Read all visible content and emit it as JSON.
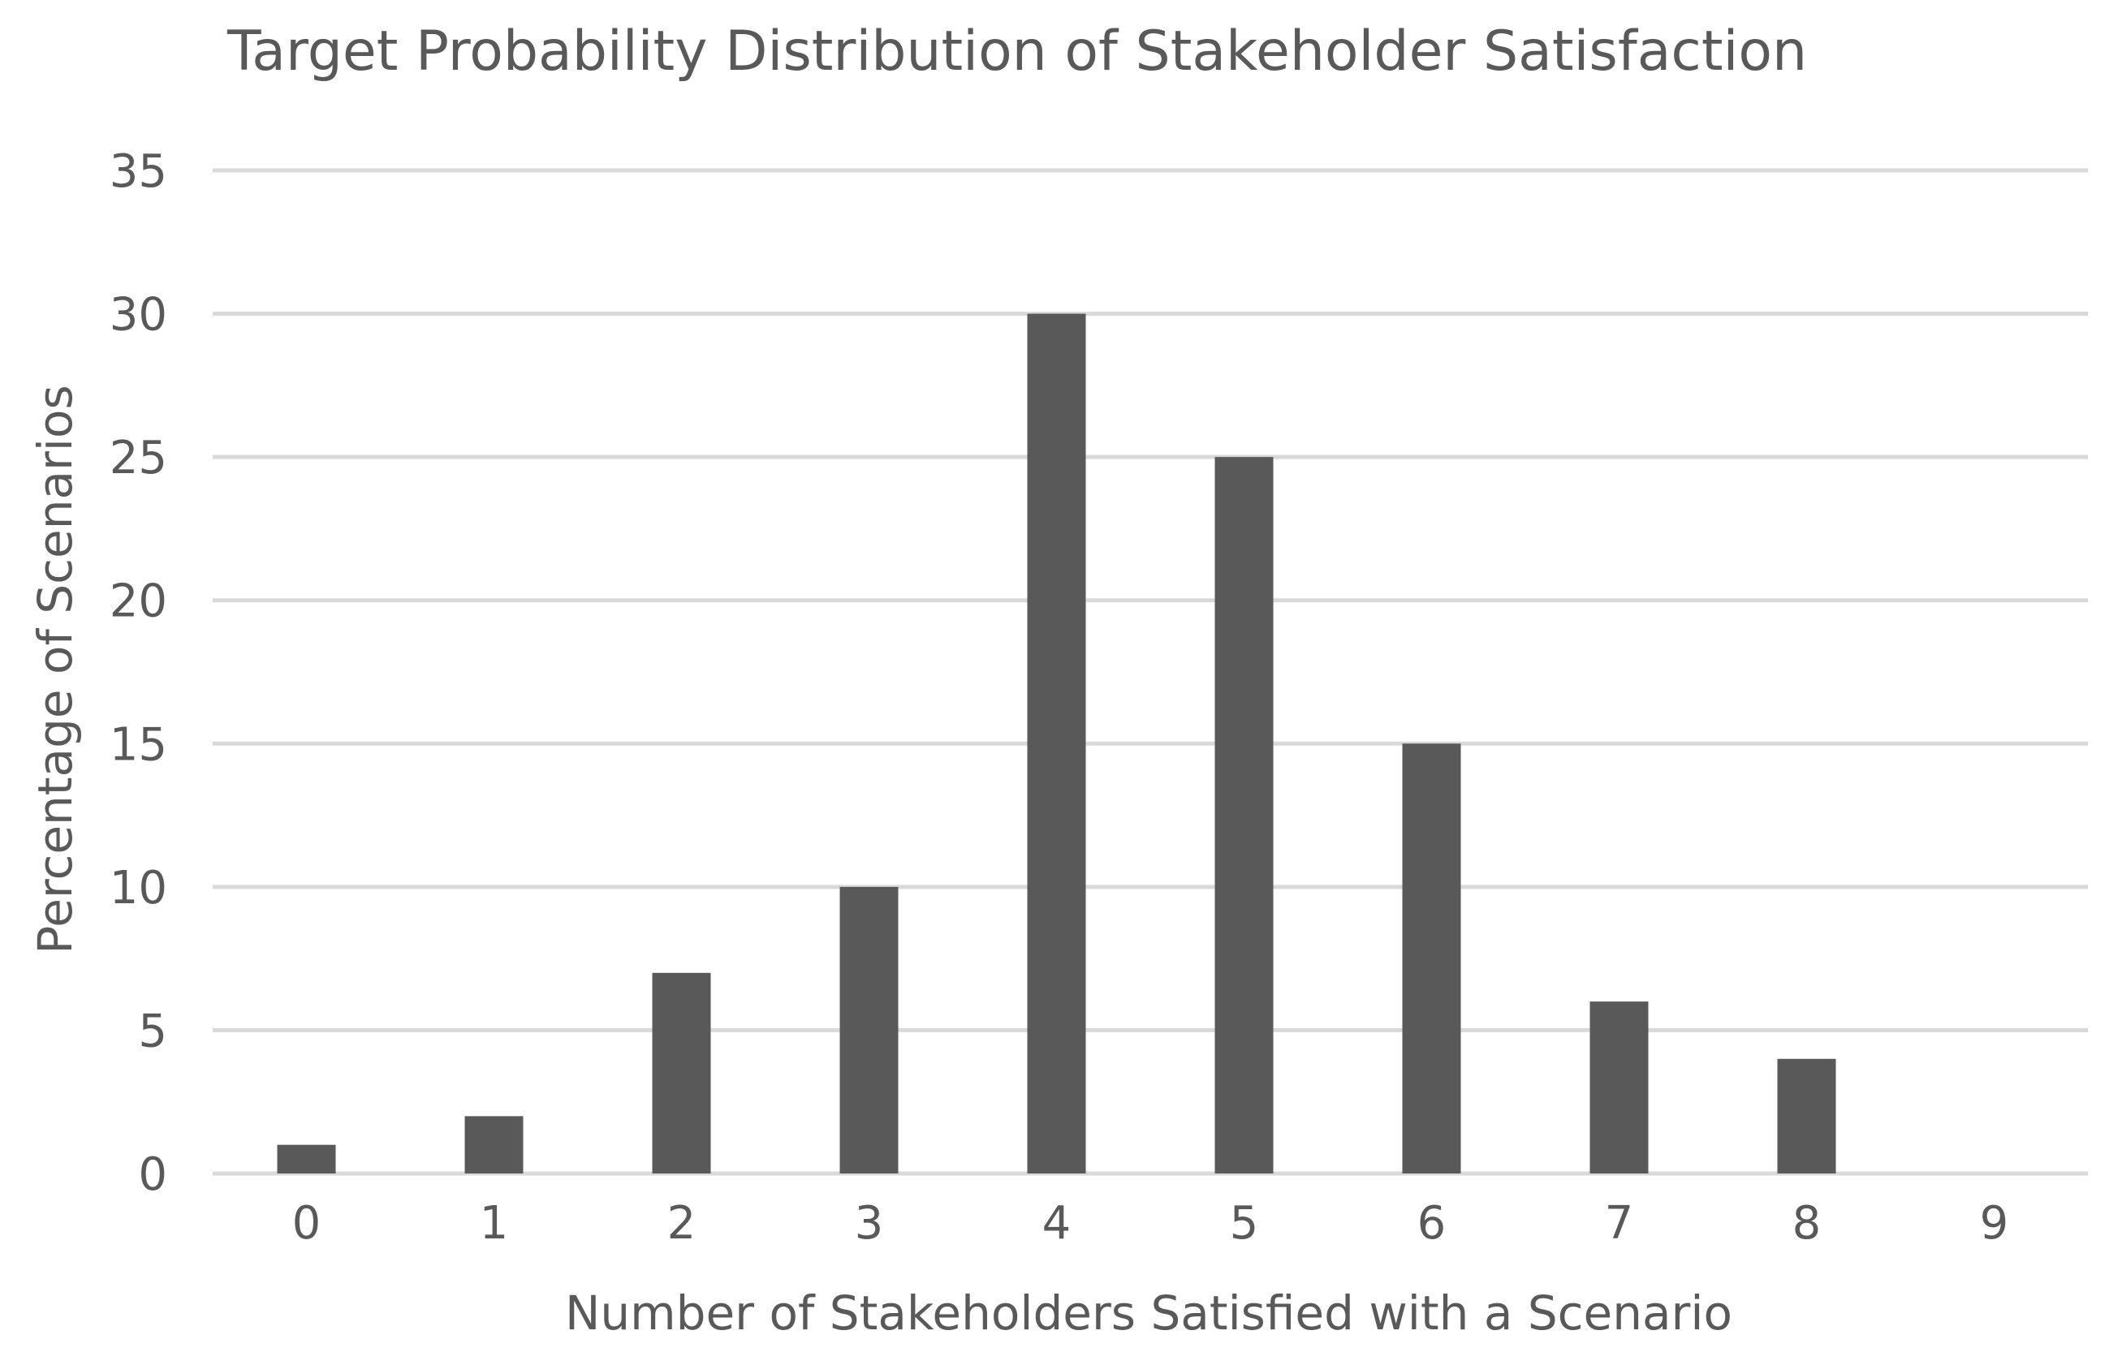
{
  "chart_data": {
    "type": "bar",
    "title": "Target Probability Distribution of Stakeholder Satisfaction",
    "xlabel": "Number of Stakeholders Satisfied with a Scenario",
    "ylabel": "Percentage of Scenarios",
    "categories": [
      "0",
      "1",
      "2",
      "3",
      "4",
      "5",
      "6",
      "7",
      "8",
      "9"
    ],
    "values": [
      1,
      2,
      7,
      10,
      30,
      25,
      15,
      6,
      4,
      0
    ],
    "ylim": [
      0,
      35
    ],
    "yticks": [
      0,
      5,
      10,
      15,
      20,
      25,
      30,
      35
    ],
    "grid": true,
    "legend": "none",
    "colors": {
      "bar": "#595959",
      "grid": "#d9d9d9",
      "text": "#595959"
    }
  }
}
